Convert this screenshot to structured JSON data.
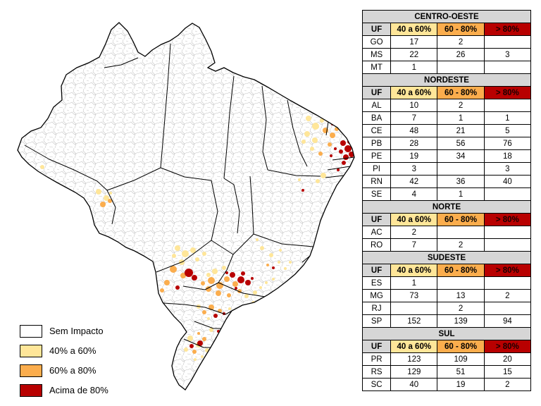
{
  "colors": {
    "no_impact": "#FFFFFF",
    "impact_40_60": "#FFE699",
    "impact_60_80": "#FBAD4D",
    "impact_80_plus": "#B80000",
    "table_gray": "#D6D6D6",
    "municipality_line": "#C3C3C3",
    "state_line": "#000000"
  },
  "legend": {
    "items": [
      {
        "label": "Sem Impacto",
        "color": "no_impact"
      },
      {
        "label": "40% a 60%",
        "color": "impact_40_60"
      },
      {
        "label": "60% a 80%",
        "color": "impact_60_80"
      },
      {
        "label": "Acima de 80%",
        "color": "impact_80_plus"
      }
    ]
  },
  "table": {
    "columns": [
      {
        "label": "UF",
        "color": "table_gray"
      },
      {
        "label": "40 a 60%",
        "color": "impact_40_60"
      },
      {
        "label": "60 - 80%",
        "color": "impact_60_80"
      },
      {
        "label": "> 80%",
        "color": "impact_80_plus"
      }
    ],
    "regions": [
      {
        "name": "CENTRO-OESTE",
        "rows": [
          {
            "uf": "GO",
            "values": [
              "17",
              "2",
              ""
            ]
          },
          {
            "uf": "MS",
            "values": [
              "22",
              "26",
              "3"
            ]
          },
          {
            "uf": "MT",
            "values": [
              "1",
              "",
              ""
            ]
          }
        ]
      },
      {
        "name": "NORDESTE",
        "rows": [
          {
            "uf": "AL",
            "values": [
              "10",
              "2",
              ""
            ]
          },
          {
            "uf": "BA",
            "values": [
              "7",
              "1",
              "1"
            ]
          },
          {
            "uf": "CE",
            "values": [
              "48",
              "21",
              "5"
            ]
          },
          {
            "uf": "PB",
            "values": [
              "28",
              "56",
              "76"
            ]
          },
          {
            "uf": "PE",
            "values": [
              "19",
              "34",
              "18"
            ]
          },
          {
            "uf": "PI",
            "values": [
              "3",
              "",
              "3"
            ]
          },
          {
            "uf": "RN",
            "values": [
              "42",
              "36",
              "40"
            ]
          },
          {
            "uf": "SE",
            "values": [
              "4",
              "1",
              ""
            ]
          }
        ]
      },
      {
        "name": "NORTE",
        "rows": [
          {
            "uf": "AC",
            "values": [
              "2",
              "",
              ""
            ]
          },
          {
            "uf": "RO",
            "values": [
              "7",
              "2",
              ""
            ]
          }
        ]
      },
      {
        "name": "SUDESTE",
        "rows": [
          {
            "uf": "ES",
            "values": [
              "1",
              "",
              ""
            ]
          },
          {
            "uf": "MG",
            "values": [
              "73",
              "13",
              "2"
            ]
          },
          {
            "uf": "RJ",
            "values": [
              "",
              "2",
              ""
            ]
          },
          {
            "uf": "SP",
            "values": [
              "152",
              "139",
              "94"
            ]
          }
        ]
      },
      {
        "name": "SUL",
        "rows": [
          {
            "uf": "PR",
            "values": [
              "123",
              "109",
              "20"
            ]
          },
          {
            "uf": "RS",
            "values": [
              "129",
              "51",
              "15"
            ]
          },
          {
            "uf": "SC",
            "values": [
              "40",
              "19",
              "2"
            ]
          }
        ]
      }
    ]
  }
}
